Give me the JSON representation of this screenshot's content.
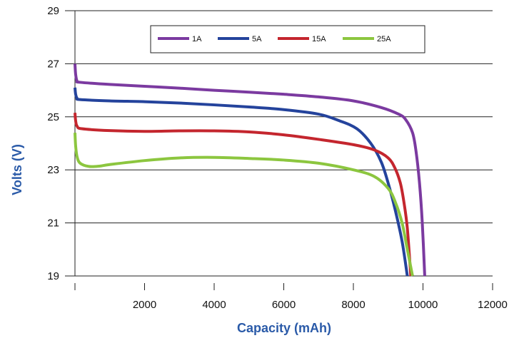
{
  "chart_data": {
    "type": "line",
    "title": "",
    "xlabel": "Capacity (mAh)",
    "ylabel": "Volts (V)",
    "xlim": [
      0,
      12000
    ],
    "ylim": [
      19,
      29
    ],
    "x_ticks": [
      2000,
      4000,
      6000,
      8000,
      10000,
      12000
    ],
    "y_ticks": [
      19,
      21,
      23,
      25,
      27,
      29
    ],
    "grid": "horizontal",
    "legend": "top-center",
    "series": [
      {
        "name": "1A",
        "color": "#7b3aa0",
        "points": [
          [
            0,
            27.0
          ],
          [
            20,
            26.6
          ],
          [
            60,
            26.35
          ],
          [
            150,
            26.3
          ],
          [
            1000,
            26.22
          ],
          [
            2000,
            26.15
          ],
          [
            3000,
            26.08
          ],
          [
            4000,
            26.0
          ],
          [
            5000,
            25.93
          ],
          [
            6000,
            25.85
          ],
          [
            7000,
            25.75
          ],
          [
            8000,
            25.6
          ],
          [
            8800,
            25.35
          ],
          [
            9300,
            25.1
          ],
          [
            9500,
            24.9
          ],
          [
            9700,
            24.4
          ],
          [
            9800,
            23.7
          ],
          [
            9900,
            22.5
          ],
          [
            9980,
            21.0
          ],
          [
            10050,
            19.0
          ]
        ]
      },
      {
        "name": "5A",
        "color": "#24439c",
        "points": [
          [
            0,
            26.1
          ],
          [
            20,
            25.85
          ],
          [
            60,
            25.7
          ],
          [
            150,
            25.65
          ],
          [
            1000,
            25.6
          ],
          [
            2000,
            25.57
          ],
          [
            3000,
            25.52
          ],
          [
            4000,
            25.45
          ],
          [
            5000,
            25.37
          ],
          [
            6000,
            25.27
          ],
          [
            7000,
            25.1
          ],
          [
            7600,
            24.85
          ],
          [
            8100,
            24.55
          ],
          [
            8500,
            24.0
          ],
          [
            8800,
            23.3
          ],
          [
            9000,
            22.5
          ],
          [
            9200,
            21.5
          ],
          [
            9400,
            20.3
          ],
          [
            9550,
            19.0
          ]
        ]
      },
      {
        "name": "15A",
        "color": "#c4262e",
        "points": [
          [
            0,
            25.15
          ],
          [
            20,
            24.85
          ],
          [
            60,
            24.65
          ],
          [
            200,
            24.55
          ],
          [
            1000,
            24.48
          ],
          [
            2000,
            24.45
          ],
          [
            3000,
            24.47
          ],
          [
            4000,
            24.47
          ],
          [
            5000,
            24.43
          ],
          [
            6000,
            24.32
          ],
          [
            7000,
            24.15
          ],
          [
            8000,
            23.95
          ],
          [
            8600,
            23.75
          ],
          [
            9000,
            23.45
          ],
          [
            9200,
            23.05
          ],
          [
            9350,
            22.5
          ],
          [
            9450,
            21.8
          ],
          [
            9550,
            20.8
          ],
          [
            9650,
            19.0
          ]
        ]
      },
      {
        "name": "25A",
        "color": "#8cc63f",
        "points": [
          [
            0,
            24.4
          ],
          [
            20,
            23.9
          ],
          [
            60,
            23.5
          ],
          [
            150,
            23.25
          ],
          [
            400,
            23.13
          ],
          [
            700,
            23.14
          ],
          [
            1000,
            23.2
          ],
          [
            2000,
            23.35
          ],
          [
            3000,
            23.45
          ],
          [
            4000,
            23.47
          ],
          [
            5000,
            23.43
          ],
          [
            6000,
            23.37
          ],
          [
            7000,
            23.25
          ],
          [
            8000,
            23.0
          ],
          [
            8600,
            22.75
          ],
          [
            9000,
            22.3
          ],
          [
            9200,
            21.8
          ],
          [
            9400,
            21.0
          ],
          [
            9550,
            20.0
          ],
          [
            9700,
            19.0
          ]
        ]
      }
    ]
  }
}
